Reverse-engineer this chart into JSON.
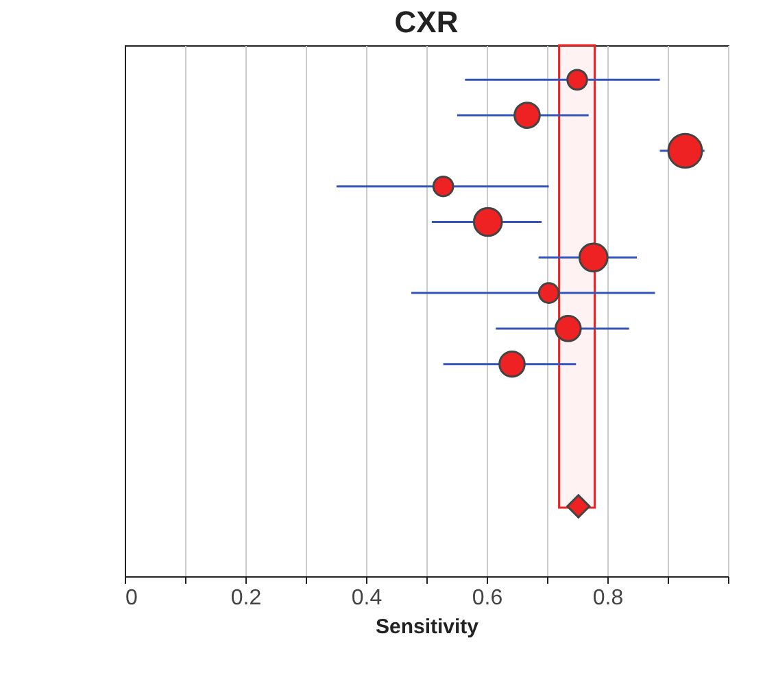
{
  "chart_data": {
    "type": "bubble",
    "title": "CXR",
    "xlabel": "Sensitivity",
    "orientation": "horizontal",
    "categories": [
      null,
      null,
      null,
      null,
      null,
      null,
      null,
      null,
      null,
      null,
      null,
      null,
      null,
      null
    ],
    "series": [
      {
        "color": "#ee2222",
        "values": [
          0.75,
          0.667,
          0.929,
          0.528,
          0.602,
          0.777,
          0.703,
          0.735,
          0.642,
          null,
          null,
          null,
          null,
          null
        ],
        "sizes": [
          0.34,
          0.56,
          1,
          0.34,
          0.69,
          0.69,
          0.34,
          0.56,
          0.56,
          null,
          null,
          null,
          null,
          null
        ],
        "errors": [
          [
            0.564,
            0.887
          ],
          [
            0.551,
            0.769
          ],
          [
            0.887,
            0.961
          ],
          [
            0.351,
            0.703
          ],
          [
            0.509,
            0.691
          ],
          [
            0.686,
            0.849
          ],
          [
            0.475,
            0.879
          ],
          [
            0.615,
            0.836
          ],
          [
            0.528,
            0.748
          ],
          null,
          null,
          null,
          null,
          null
        ]
      },
      {
        "type": "scatter",
        "marker": "diamond",
        "color": "#ee2222",
        "values": [
          null,
          null,
          null,
          null,
          null,
          null,
          null,
          null,
          null,
          null,
          null,
          null,
          0.752,
          null
        ]
      }
    ],
    "bands": [
      {
        "axis": "x",
        "from": 0.72,
        "to": 0.779,
        "color": "#ee2222"
      }
    ],
    "xlim": [
      0,
      1
    ],
    "xticks": [
      0,
      {
        "value": 0.1,
        "label": null
      },
      0.2,
      {
        "value": 0.3,
        "label": null
      },
      0.4,
      {
        "value": 0.5,
        "label": null
      },
      0.6,
      {
        "value": 0.7,
        "label": null
      },
      0.8,
      {
        "value": 0.9,
        "label": null
      },
      {
        "value": 1,
        "label": null
      }
    ],
    "grid": "x",
    "tick_labels": "x"
  }
}
